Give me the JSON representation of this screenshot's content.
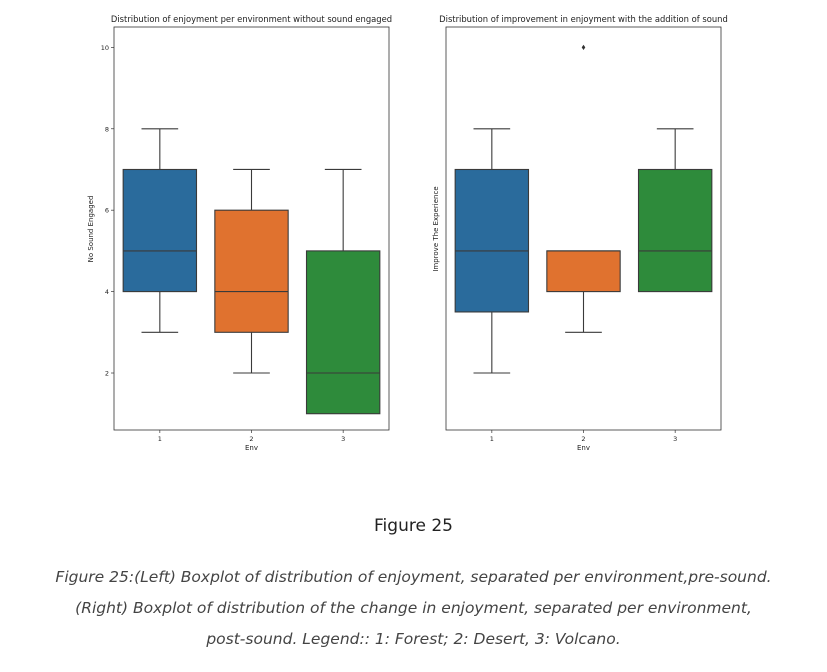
{
  "chart_data": [
    {
      "type": "box",
      "title": "Distribution of enjoyment per environment without sound engaged",
      "xlabel": "Env",
      "ylabel": "No Sound Engaged",
      "categories": [
        "1",
        "2",
        "3"
      ],
      "yticks": [
        2,
        4,
        6,
        8,
        10
      ],
      "ylim": [
        0.6,
        10.5
      ],
      "boxes": [
        {
          "category": "1",
          "whisker_low": 3,
          "q1": 4,
          "median": 5,
          "q3": 7,
          "whisker_high": 8,
          "outliers": []
        },
        {
          "category": "2",
          "whisker_low": 2,
          "q1": 3,
          "median": 4,
          "q3": 6,
          "whisker_high": 7,
          "outliers": []
        },
        {
          "category": "3",
          "whisker_low": 1,
          "q1": 1,
          "median": 2,
          "q3": 5,
          "whisker_high": 7,
          "outliers": []
        }
      ]
    },
    {
      "type": "box",
      "title": "Distribution of improvement in enjoyment with the addition of sound",
      "xlabel": "Env",
      "ylabel": "Improve The Experience",
      "categories": [
        "1",
        "2",
        "3"
      ],
      "yticks": [],
      "ylim": [
        0.6,
        10.5
      ],
      "boxes": [
        {
          "category": "1",
          "whisker_low": 2,
          "q1": 3.5,
          "median": 5,
          "q3": 7,
          "whisker_high": 8,
          "outliers": []
        },
        {
          "category": "2",
          "whisker_low": 3,
          "q1": 4,
          "median": 5,
          "q3": 5,
          "whisker_high": 5,
          "outliers": [
            10
          ]
        },
        {
          "category": "3",
          "whisker_low": 4,
          "q1": 4,
          "median": 5,
          "q3": 7,
          "whisker_high": 8,
          "outliers": []
        }
      ]
    }
  ],
  "palette": [
    "#2a6b9c",
    "#e0722f",
    "#2e8b3b"
  ],
  "figure_label": "Figure  25",
  "caption_lines": [
    "Figure 25:(Left) Boxplot of distribution of enjoyment, separated per environment,pre-sound.",
    "(Right) Boxplot of distribution of the change in enjoyment, separated per environment,",
    "post-sound. Legend:: 1: Forest; 2: Desert, 3: Volcano."
  ]
}
